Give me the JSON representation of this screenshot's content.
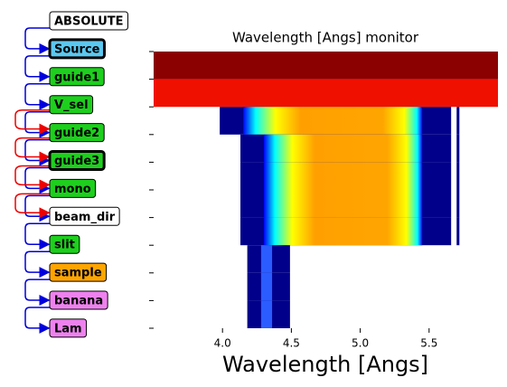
{
  "nodes": [
    {
      "label": "ABSOLUTE",
      "color": "#ffffff"
    },
    {
      "label": "Source",
      "color": "#5bc8f0",
      "bold_border": true
    },
    {
      "label": "guide1",
      "color": "#1ecf1e"
    },
    {
      "label": "V_sel",
      "color": "#1ecf1e"
    },
    {
      "label": "guide2",
      "color": "#1ecf1e"
    },
    {
      "label": "guide3",
      "color": "#1ecf1e",
      "bold_border": true
    },
    {
      "label": "mono",
      "color": "#1ecf1e"
    },
    {
      "label": "beam_dir",
      "color": "#ffffff"
    },
    {
      "label": "slit",
      "color": "#1ecf1e"
    },
    {
      "label": "sample",
      "color": "#ffa500"
    },
    {
      "label": "banana",
      "color": "#ee82ee"
    },
    {
      "label": "Lam",
      "color": "#ee82ee"
    }
  ],
  "chart_data": {
    "type": "heatmap-rows",
    "title": "Wavelength [Angs] monitor",
    "x_label": "Wavelength [Angs]",
    "xlim": [
      3.5,
      6.0
    ],
    "xticks": [
      {
        "value": 4.0,
        "label": "4.0"
      },
      4.5,
      {
        "value": 5.0,
        "label": "5.0"
      },
      5.5
    ],
    "ylim": [
      0,
      10
    ],
    "yticks": [
      0,
      1,
      2,
      3,
      4,
      5,
      6,
      7,
      8,
      9,
      10
    ],
    "rows": [
      [
        {
          "x": [
            3.5,
            6.0
          ],
          "color": "#8b0000"
        }
      ],
      [
        {
          "x": [
            3.5,
            6.0
          ],
          "color": "#f01000"
        }
      ],
      [
        {
          "x": [
            3.98,
            5.66
          ],
          "color": "#00008b"
        },
        {
          "x": [
            4.15,
            5.45
          ],
          "color": "jet"
        },
        {
          "x": [
            5.7,
            5.72
          ],
          "color": "#00008b"
        }
      ],
      [
        {
          "x": [
            4.13,
            5.66
          ],
          "color": "#00008b"
        },
        {
          "x": [
            4.3,
            5.45
          ],
          "color": "jet"
        },
        {
          "x": [
            5.7,
            5.72
          ],
          "color": "#00008b"
        }
      ],
      [
        {
          "x": [
            4.13,
            5.66
          ],
          "color": "#00008b"
        },
        {
          "x": [
            4.3,
            5.45
          ],
          "color": "jet"
        },
        {
          "x": [
            5.7,
            5.72
          ],
          "color": "#00008b"
        }
      ],
      [
        {
          "x": [
            4.13,
            5.66
          ],
          "color": "#00008b"
        },
        {
          "x": [
            4.3,
            5.45
          ],
          "color": "jet"
        },
        {
          "x": [
            5.7,
            5.72
          ],
          "color": "#00008b"
        }
      ],
      [
        {
          "x": [
            4.13,
            5.66
          ],
          "color": "#00008b"
        },
        {
          "x": [
            4.3,
            5.45
          ],
          "color": "jet"
        },
        {
          "x": [
            5.7,
            5.72
          ],
          "color": "#00008b"
        }
      ],
      [
        {
          "x": [
            4.18,
            4.49
          ],
          "color": "#00008b"
        },
        {
          "x": [
            4.28,
            4.36
          ],
          "color": "#2a5cff"
        }
      ],
      [
        {
          "x": [
            4.18,
            4.49
          ],
          "color": "#00008b"
        },
        {
          "x": [
            4.28,
            4.36
          ],
          "color": "#2a5cff"
        }
      ],
      [
        {
          "x": [
            4.18,
            4.49
          ],
          "color": "#00008b"
        },
        {
          "x": [
            4.28,
            4.36
          ],
          "color": "#2a5cff"
        }
      ]
    ]
  }
}
